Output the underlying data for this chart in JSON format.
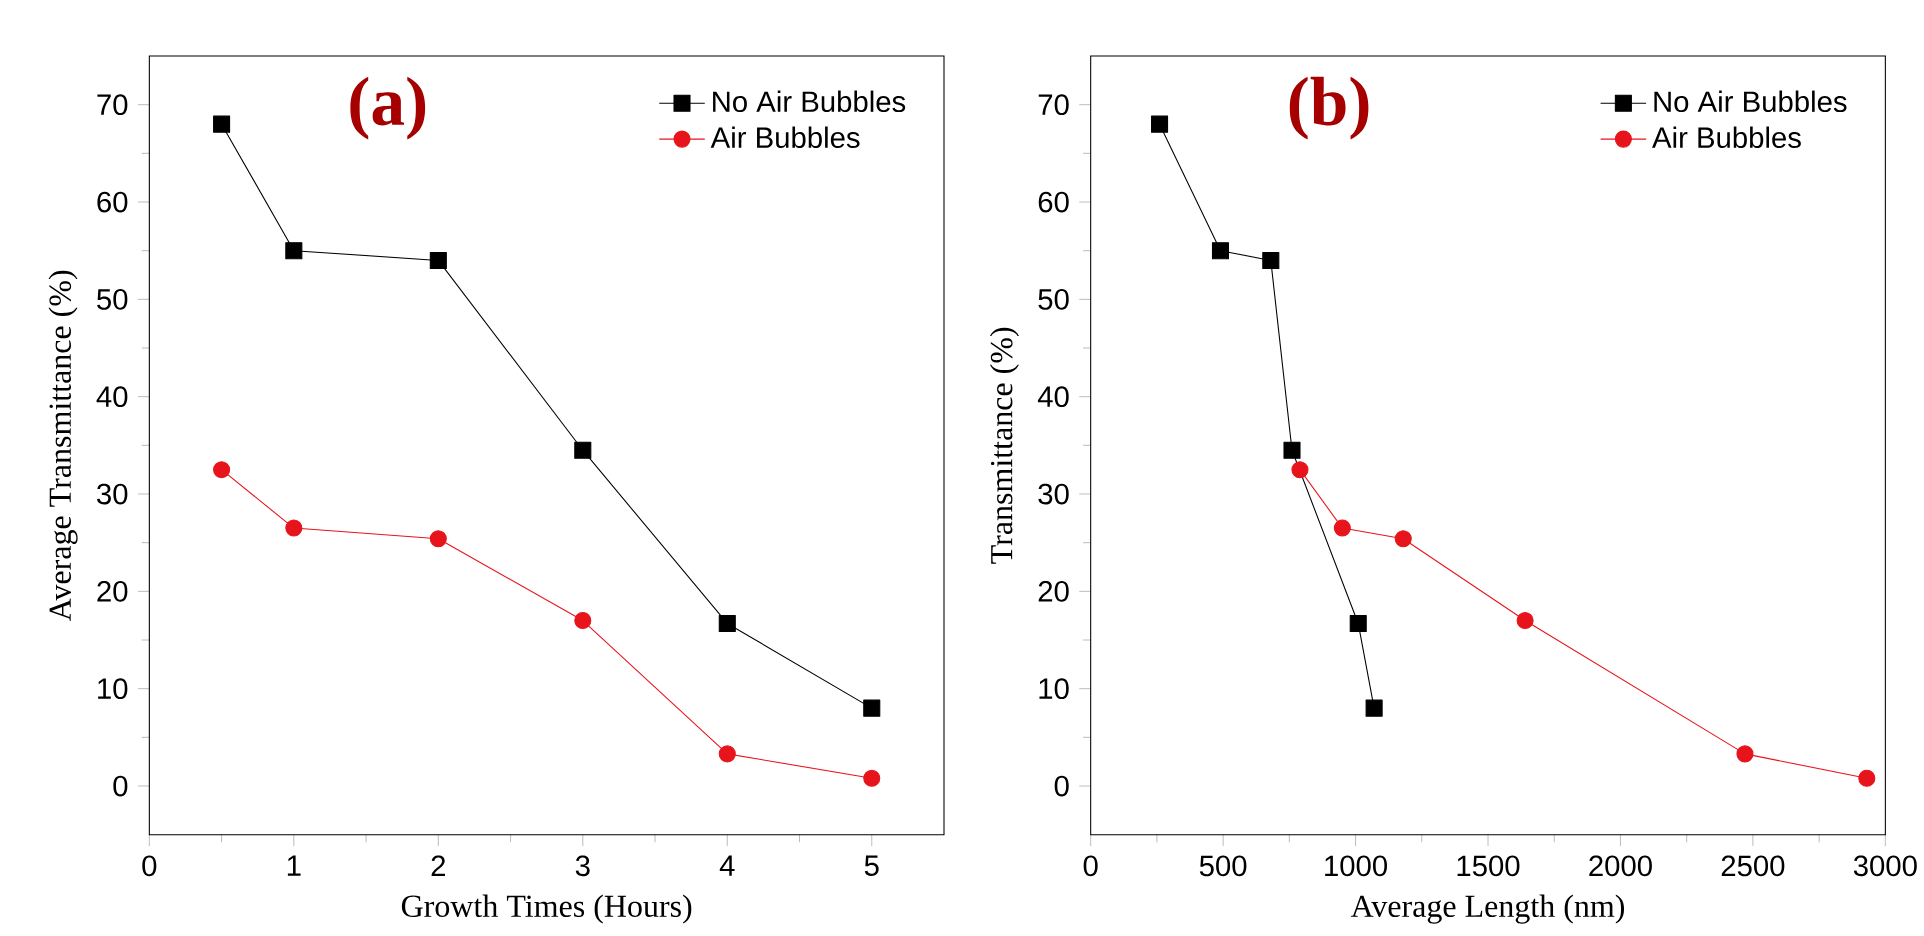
{
  "chart_data": [
    {
      "type": "line",
      "title": "(a)",
      "xlabel": "Growth Times (Hours)",
      "ylabel": "Average Transmittance (%)",
      "xlim": [
        0,
        5.5
      ],
      "ylim": [
        -5,
        75
      ],
      "xticks": [
        0,
        1,
        2,
        3,
        4,
        5
      ],
      "yticks": [
        0,
        10,
        20,
        30,
        40,
        50,
        60,
        70
      ],
      "legend": "top right",
      "grid": false,
      "series": [
        {
          "name": "No Air Bubbles",
          "color": "#000000",
          "marker": "square",
          "x": [
            0.5,
            1,
            2,
            3,
            4,
            5
          ],
          "values": [
            68,
            55,
            54,
            34.5,
            16.7,
            8
          ]
        },
        {
          "name": "Air Bubbles",
          "color": "#e8141c",
          "marker": "circle",
          "x": [
            0.5,
            1,
            2,
            3,
            4,
            5
          ],
          "values": [
            32.5,
            26.5,
            25.4,
            17,
            3.3,
            0.8
          ]
        }
      ]
    },
    {
      "type": "line",
      "title": "(b)",
      "xlabel": "Average Length (nm)",
      "ylabel": "Transmittance (%)",
      "xlim": [
        0,
        3000
      ],
      "ylim": [
        -5,
        75
      ],
      "xticks": [
        0,
        500,
        1000,
        1500,
        2000,
        2500,
        3000
      ],
      "yticks": [
        0,
        10,
        20,
        30,
        40,
        50,
        60,
        70
      ],
      "legend": "top right",
      "grid": false,
      "series": [
        {
          "name": "No Air Bubbles",
          "color": "#000000",
          "marker": "square",
          "x": [
            260,
            490,
            680,
            760,
            1010,
            1070
          ],
          "values": [
            68,
            55,
            54,
            34.5,
            16.7,
            8
          ]
        },
        {
          "name": "Air Bubbles",
          "color": "#e8141c",
          "marker": "circle",
          "x": [
            790,
            950,
            1180,
            1640,
            2470,
            2930
          ],
          "values": [
            32.5,
            26.5,
            25.4,
            17,
            3.3,
            0.8
          ]
        }
      ]
    }
  ]
}
